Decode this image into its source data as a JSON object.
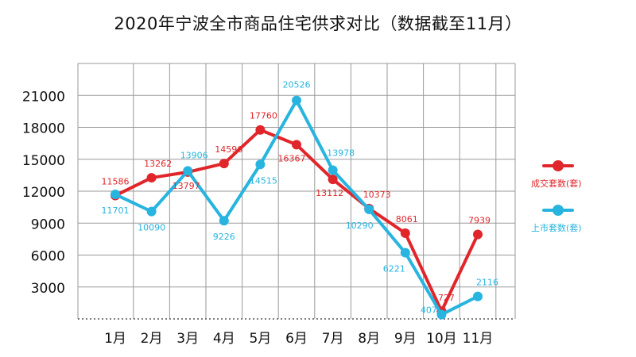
{
  "chart_data": {
    "type": "line",
    "title": "2020年宁波全市商品住宅供求对比（数据截至11月）",
    "categories": [
      "1月",
      "2月",
      "3月",
      "4月",
      "5月",
      "6月",
      "7月",
      "8月",
      "9月",
      "10月",
      "11月"
    ],
    "yticks": [
      "3000",
      "6000",
      "9000",
      "12000",
      "15000",
      "18000",
      "21000"
    ],
    "ylim": [
      0,
      24000
    ],
    "grid": true,
    "legend_position": "right",
    "series": [
      {
        "name": "成交套数(套)",
        "color": "#e0262b",
        "values": [
          11586,
          13262,
          13797,
          14596,
          17760,
          16367,
          13112,
          10373,
          8061,
          727,
          7939
        ],
        "labels": [
          "11586",
          "13262",
          "13797",
          "14596",
          "17760",
          "16367",
          "13112",
          "10373",
          "8061",
          "727",
          "7939"
        ]
      },
      {
        "name": "上市套数(套)",
        "color": "#27b4df",
        "values": [
          11701,
          10090,
          13906,
          9226,
          14515,
          20526,
          13978,
          10290,
          6221,
          407,
          2116
        ],
        "labels": [
          "11701",
          "10090",
          "13906",
          "9226",
          "14515",
          "20526",
          "13978",
          "10290",
          "6221",
          "407",
          "2116"
        ]
      }
    ]
  }
}
